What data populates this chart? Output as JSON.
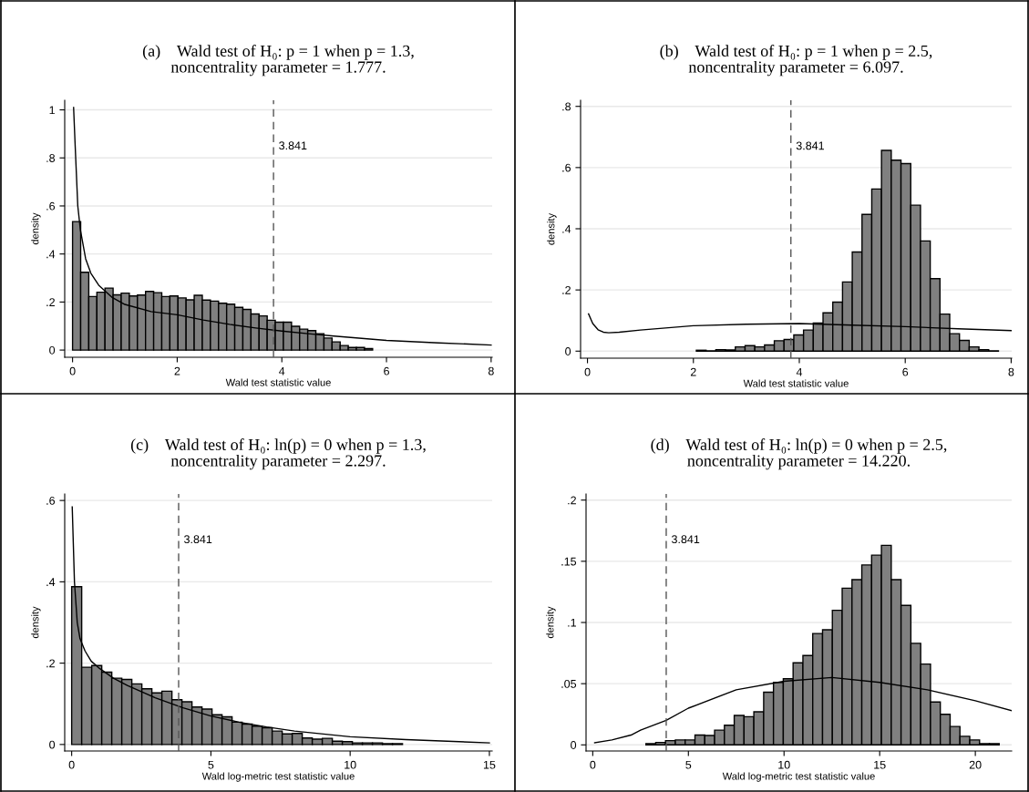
{
  "chart_data": [
    {
      "type": "histogram",
      "title": "(a)    Wald test of H₀: p = 1 when p = 1.3,\nnoncentrality parameter = 1.777.",
      "xlabel": "Wald test statistic value",
      "ylabel": "density",
      "color": "#808080",
      "bins": [
        0,
        0.155,
        0.31,
        0.465,
        0.62,
        0.775,
        0.93,
        1.085,
        1.24,
        1.395,
        1.55,
        1.705,
        1.86,
        2.015,
        2.17,
        2.325,
        2.48,
        2.635,
        2.79,
        2.945,
        3.1,
        3.255,
        3.41,
        3.565,
        3.72,
        3.875,
        4.03,
        4.185,
        4.34,
        4.495,
        4.65,
        4.805,
        4.96,
        5.115,
        5.27,
        5.425,
        5.58,
        5.735
      ],
      "values": [
        0.535,
        0.324,
        0.223,
        0.241,
        0.258,
        0.23,
        0.237,
        0.225,
        0.229,
        0.244,
        0.239,
        0.223,
        0.225,
        0.217,
        0.209,
        0.228,
        0.208,
        0.204,
        0.195,
        0.191,
        0.178,
        0.169,
        0.15,
        0.142,
        0.124,
        0.116,
        0.116,
        0.099,
        0.087,
        0.081,
        0.068,
        0.05,
        0.034,
        0.019,
        0.011,
        0.011,
        0.006
      ],
      "series": [
        {
          "type": "line",
          "color": "#000000",
          "x": [
            0.02,
            0.05,
            0.1,
            0.15,
            0.25,
            0.35,
            0.5,
            0.75,
            1.0,
            1.5,
            2,
            2.5,
            3,
            3.5,
            4,
            4.5,
            5,
            6,
            7,
            8
          ],
          "values": [
            1.01,
            0.85,
            0.6,
            0.5,
            0.38,
            0.32,
            0.27,
            0.22,
            0.19,
            0.16,
            0.147,
            0.125,
            0.107,
            0.092,
            0.079,
            0.068,
            0.058,
            0.04,
            0.03,
            0.021
          ]
        }
      ],
      "ref_lines": [
        {
          "axis": "x",
          "value": 3.841,
          "label": "3.841",
          "color": "#555555",
          "line_style": "dashed"
        }
      ],
      "xlim": [
        -0.15,
        8.02
      ],
      "ylim": [
        -0.03,
        1.04
      ],
      "xticks": [
        0,
        2,
        4,
        6,
        8
      ],
      "yticks": [
        0,
        {
          "value": 0.2,
          "label": ".2"
        },
        {
          "value": 0.4,
          "label": ".4"
        },
        {
          "value": 0.6,
          "label": ".6"
        },
        {
          "value": 0.8,
          "label": ".8"
        },
        1
      ],
      "grid": "y"
    },
    {
      "type": "histogram",
      "title": "(b)    Wald test of H₀: p = 1 when p = 2.5,\nnoncentrality parameter = 6.097.",
      "xlabel": "Wald test statistic value",
      "ylabel": "density",
      "color": "#808080",
      "bins": [
        2.056,
        2.24,
        2.424,
        2.608,
        2.792,
        2.976,
        3.16,
        3.344,
        3.528,
        3.712,
        3.896,
        4.08,
        4.264,
        4.448,
        4.632,
        4.816,
        5.0,
        5.184,
        5.368,
        5.552,
        5.736,
        5.92,
        6.104,
        6.288,
        6.472,
        6.656,
        6.84,
        7.024,
        7.208,
        7.392,
        7.576,
        7.76
      ],
      "values": [
        0.003,
        0.001,
        0.005,
        0.004,
        0.014,
        0.018,
        0.014,
        0.02,
        0.034,
        0.038,
        0.053,
        0.069,
        0.092,
        0.125,
        0.16,
        0.226,
        0.324,
        0.447,
        0.53,
        0.656,
        0.624,
        0.613,
        0.477,
        0.36,
        0.237,
        0.121,
        0.057,
        0.035,
        0.014,
        0.005,
        0.001
      ],
      "series": [
        {
          "type": "line",
          "color": "#000000",
          "x": [
            0.02,
            0.1,
            0.2,
            0.3,
            0.4,
            0.6,
            1,
            2,
            3,
            4,
            5,
            6,
            7,
            8
          ],
          "values": [
            0.122,
            0.09,
            0.07,
            0.062,
            0.06,
            0.062,
            0.069,
            0.083,
            0.088,
            0.09,
            0.085,
            0.08,
            0.073,
            0.067
          ]
        }
      ],
      "ref_lines": [
        {
          "axis": "x",
          "value": 3.841,
          "label": "3.841",
          "color": "#555555",
          "line_style": "dashed"
        }
      ],
      "xlim": [
        -0.13,
        8.01
      ],
      "ylim": [
        -0.023,
        0.82
      ],
      "xticks": [
        0,
        2,
        4,
        6,
        8
      ],
      "yticks": [
        0,
        {
          "value": 0.2,
          "label": ".2"
        },
        {
          "value": 0.4,
          "label": ".4"
        },
        {
          "value": 0.6,
          "label": ".6"
        },
        {
          "value": 0.8,
          "label": ".8"
        }
      ],
      "grid": "y"
    },
    {
      "type": "histogram",
      "title": "(c)    Wald test of H₀: ln(p) = 0 when p = 1.3,\nnoncentrality parameter = 2.297.",
      "xlabel": "Wald log-metric test statistic value",
      "ylabel": "density",
      "color": "#808080",
      "bins": [
        0,
        0.36,
        0.72,
        1.08,
        1.44,
        1.8,
        2.16,
        2.52,
        2.88,
        3.24,
        3.6,
        3.96,
        4.32,
        4.68,
        5.04,
        5.4,
        5.76,
        6.12,
        6.48,
        6.84,
        7.2,
        7.56,
        7.92,
        8.28,
        8.64,
        9.0,
        9.36,
        9.72,
        10.08,
        10.44,
        10.8,
        11.16,
        11.52,
        11.88
      ],
      "values": [
        0.388,
        0.19,
        0.194,
        0.178,
        0.163,
        0.16,
        0.149,
        0.137,
        0.127,
        0.131,
        0.11,
        0.105,
        0.092,
        0.087,
        0.073,
        0.068,
        0.055,
        0.05,
        0.045,
        0.041,
        0.033,
        0.026,
        0.027,
        0.016,
        0.013,
        0.015,
        0.008,
        0.007,
        0.004,
        0.004,
        0.004,
        0.002,
        0.002
      ],
      "series": [
        {
          "type": "line",
          "color": "#000000",
          "x": [
            0.02,
            0.1,
            0.2,
            0.3,
            0.48,
            0.7,
            1,
            1.5,
            2,
            3,
            4,
            5,
            6,
            7,
            8,
            10,
            12,
            15
          ],
          "values": [
            0.584,
            0.4,
            0.3,
            0.26,
            0.23,
            0.205,
            0.187,
            0.163,
            0.145,
            0.115,
            0.09,
            0.07,
            0.055,
            0.043,
            0.033,
            0.019,
            0.012,
            0.004
          ]
        }
      ],
      "ref_lines": [
        {
          "axis": "x",
          "value": 3.841,
          "label": "3.841",
          "color": "#555555",
          "line_style": "dashed"
        }
      ],
      "xlim": [
        -0.25,
        15.1
      ],
      "ylim": [
        -0.016,
        0.616
      ],
      "xticks": [
        0,
        5,
        10,
        15
      ],
      "yticks": [
        0,
        {
          "value": 0.2,
          "label": ".2"
        },
        {
          "value": 0.4,
          "label": ".4"
        },
        {
          "value": 0.6,
          "label": ".6"
        }
      ],
      "grid": "y"
    },
    {
      "type": "histogram",
      "title": "(d)    Wald test of H₀: ln(p) = 0 when p = 2.5,\nnoncentrality parameter = 14.220.",
      "xlabel": "Wald log-metric test statistic value",
      "ylabel": "density",
      "color": "#808080",
      "bins": [
        2.779,
        3.292,
        3.805,
        4.318,
        4.831,
        5.344,
        5.857,
        6.37,
        6.883,
        7.396,
        7.909,
        8.422,
        8.935,
        9.448,
        9.961,
        10.474,
        10.987,
        11.5,
        12.013,
        12.526,
        13.039,
        13.552,
        14.065,
        14.578,
        15.091,
        15.604,
        16.117,
        16.63,
        17.143,
        17.656,
        18.169,
        18.682,
        19.195,
        19.708,
        20.221,
        20.734,
        21.247
      ],
      "values": [
        0.001,
        0.002,
        0.0035,
        0.004,
        0.004,
        0.008,
        0.0077,
        0.012,
        0.016,
        0.024,
        0.023,
        0.027,
        0.043,
        0.051,
        0.054,
        0.067,
        0.073,
        0.091,
        0.094,
        0.11,
        0.128,
        0.135,
        0.147,
        0.155,
        0.163,
        0.135,
        0.114,
        0.083,
        0.066,
        0.035,
        0.025,
        0.015,
        0.007,
        0.004,
        0.001,
        0.001
      ],
      "series": [
        {
          "type": "line",
          "color": "#000000",
          "x": [
            0.1,
            1,
            2,
            2.5,
            3.841,
            5,
            7.5,
            10,
            12.5,
            15,
            17.5,
            20,
            21.9
          ],
          "values": [
            0.0017,
            0.004,
            0.008,
            0.012,
            0.02,
            0.03,
            0.045,
            0.052,
            0.055,
            0.051,
            0.045,
            0.036,
            0.028
          ]
        }
      ],
      "ref_lines": [
        {
          "axis": "x",
          "value": 3.841,
          "label": "3.841",
          "color": "#555555",
          "line_style": "dashed"
        }
      ],
      "xlim": [
        -0.35,
        21.9
      ],
      "ylim": [
        -0.005,
        0.205
      ],
      "xticks": [
        0,
        5,
        10,
        15,
        20
      ],
      "yticks": [
        0,
        {
          "value": 0.05,
          "label": ".05"
        },
        {
          "value": 0.1,
          "label": ".1"
        },
        {
          "value": 0.15,
          "label": ".15"
        },
        {
          "value": 0.2,
          "label": ".2"
        }
      ],
      "grid": "y"
    }
  ]
}
